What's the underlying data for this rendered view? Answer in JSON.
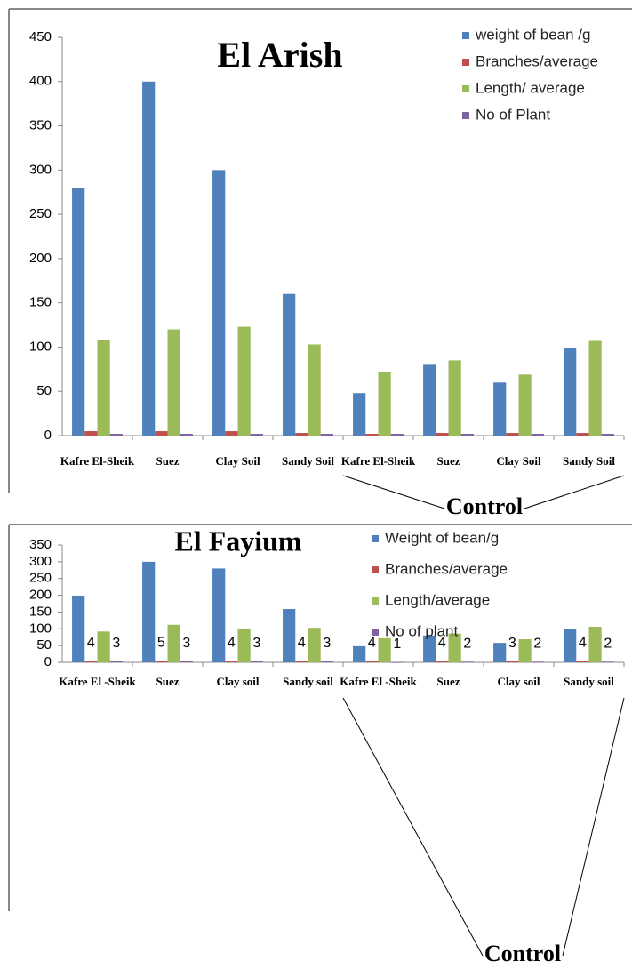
{
  "chart_data": [
    {
      "type": "bar",
      "title": "El Arish",
      "categories": [
        "Kafre El-Sheik",
        "Suez",
        "Clay Soil",
        "Sandy Soil",
        "Kafre El-Sheik",
        "Suez",
        "Clay Soil",
        "Sandy Soil"
      ],
      "series": [
        {
          "name": "weight of bean /g",
          "color": "#4f81bd",
          "values": [
            280,
            400,
            300,
            160,
            48,
            80,
            60,
            99
          ]
        },
        {
          "name": "Branches/average",
          "color": "#c0504d",
          "values": [
            5,
            5,
            5,
            3,
            2,
            3,
            3,
            3
          ]
        },
        {
          "name": "Length/ average",
          "color": "#9bbb59",
          "values": [
            108,
            120,
            123,
            103,
            72,
            85,
            69,
            107
          ]
        },
        {
          "name": "No of Plant",
          "color": "#8064a2",
          "values": [
            2,
            2,
            2,
            2,
            2,
            2,
            2,
            2
          ]
        }
      ],
      "ylim": [
        0,
        450
      ],
      "yticks": [
        0,
        50,
        100,
        150,
        200,
        250,
        300,
        350,
        400,
        450
      ],
      "annotation": "Control"
    },
    {
      "type": "bar",
      "title": "El Fayium",
      "categories": [
        "Kafre El -Sheik",
        "Suez",
        "Clay soil",
        "Sandy soil",
        "Kafre El -Sheik",
        "Suez",
        "Clay soil",
        "Sandy soil"
      ],
      "series": [
        {
          "name": "Weight of bean/g",
          "color": "#4f81bd",
          "values": [
            199,
            300,
            280,
            159,
            48,
            80,
            58,
            100
          ]
        },
        {
          "name": "Branches/average",
          "color": "#c0504d",
          "values": [
            4,
            5,
            4,
            4,
            4,
            4,
            3,
            4
          ],
          "show_labels": true
        },
        {
          "name": "Length/average",
          "color": "#9bbb59",
          "values": [
            92,
            112,
            101,
            103,
            72,
            86,
            69,
            106
          ]
        },
        {
          "name": "No of plant",
          "color": "#8064a2",
          "values": [
            3,
            3,
            3,
            3,
            1,
            2,
            2,
            2
          ],
          "show_labels": true
        }
      ],
      "ylim": [
        0,
        350
      ],
      "yticks": [
        0,
        50,
        100,
        150,
        200,
        250,
        300,
        350
      ],
      "annotation": "Control"
    }
  ]
}
